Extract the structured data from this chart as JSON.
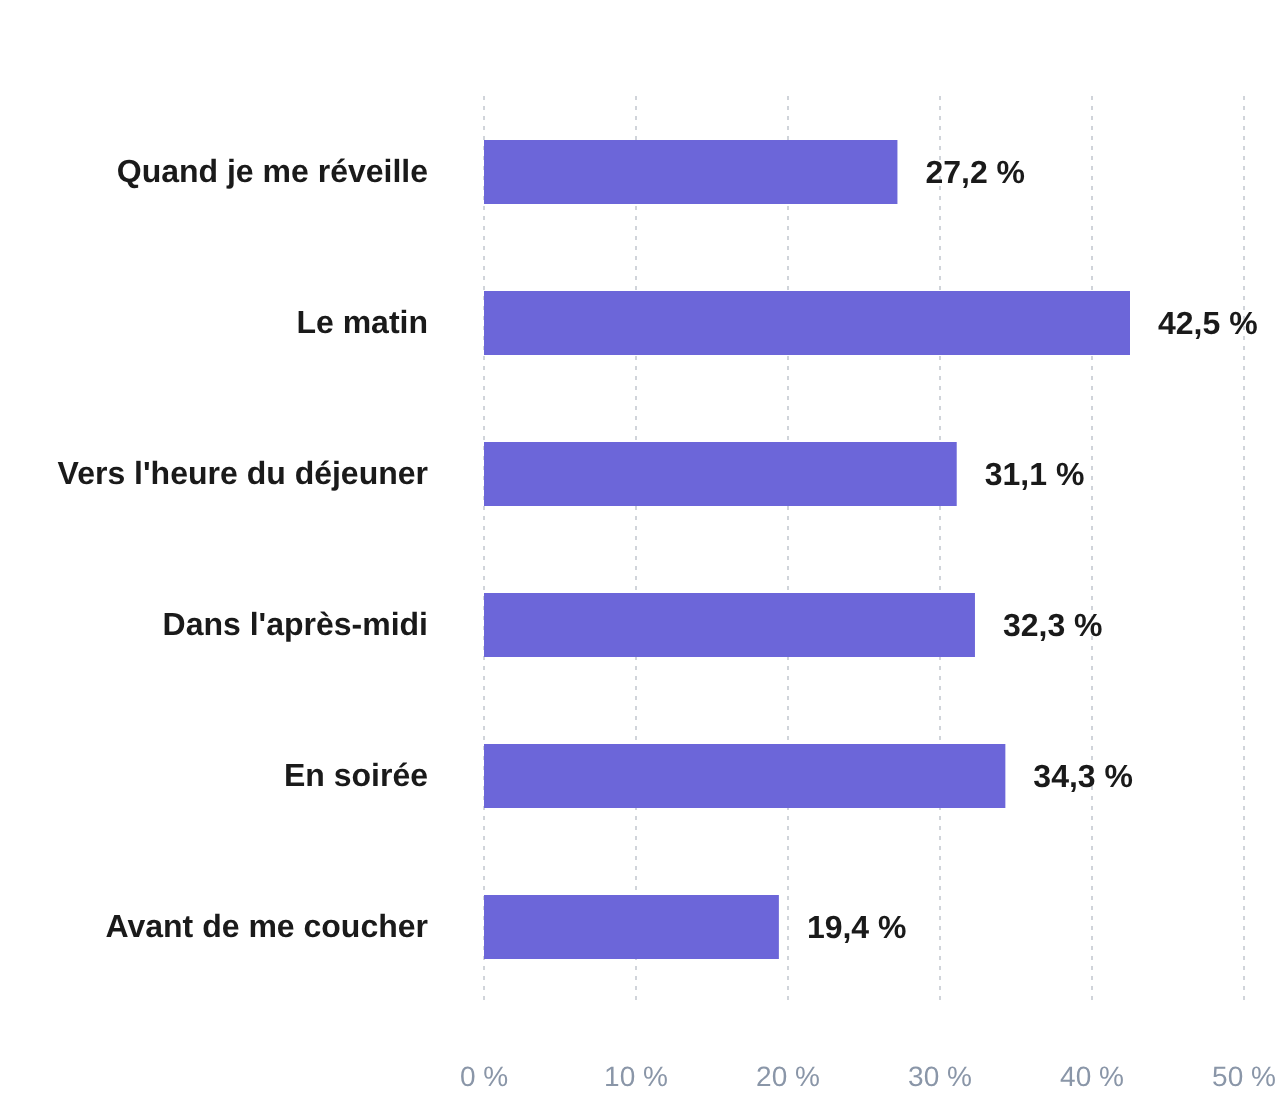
{
  "chart_data": {
    "type": "bar",
    "orientation": "horizontal",
    "categories": [
      "Quand je me réveille",
      "Le matin",
      "Vers l'heure du déjeuner",
      "Dans l'après-midi",
      "En soirée",
      "Avant de me coucher"
    ],
    "values": [
      27.2,
      42.5,
      31.1,
      32.3,
      34.3,
      19.4
    ],
    "value_labels": [
      "27,2 %",
      "42,5 %",
      "31,1 %",
      "32,3 %",
      "34,3 %",
      "19,4 %"
    ],
    "color": "#6c66d9",
    "xlim": [
      0,
      50
    ],
    "xticks": [
      {
        "value": 0,
        "label": "0 %"
      },
      {
        "value": 10,
        "label": "10 %"
      },
      {
        "value": 20,
        "label": "20 %"
      },
      {
        "value": 30,
        "label": "30 %"
      },
      {
        "value": 40,
        "label": "40 %"
      },
      {
        "value": 50,
        "label": "50 %"
      }
    ],
    "grid": "x"
  }
}
